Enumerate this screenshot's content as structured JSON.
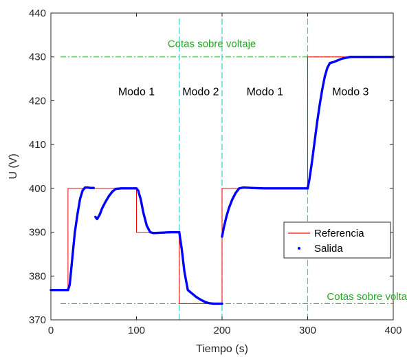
{
  "chart_data": {
    "type": "line",
    "xlabel": "Tiempo (s)",
    "ylabel": "U (V)",
    "xlim": [
      0,
      400
    ],
    "ylim": [
      370,
      440
    ],
    "xticks": [
      0,
      100,
      200,
      300,
      400
    ],
    "yticks": [
      370,
      380,
      390,
      400,
      410,
      420,
      430,
      440
    ],
    "grid": false,
    "legend_position": "lower-right",
    "legend": [
      "Referencia",
      "Salida"
    ],
    "colors": {
      "reference": "#ff0000",
      "output": "#0000ff",
      "bounds": "#22aa22",
      "mode_lines": "#33cccc"
    },
    "series": [
      {
        "name": "Referencia",
        "style": "line",
        "x": [
          0,
          20,
          20,
          100,
          100,
          150,
          150,
          200,
          200,
          300,
          300,
          400
        ],
        "y": [
          376.8,
          376.8,
          400,
          400,
          390,
          390,
          373.7,
          373.7,
          400,
          400,
          430,
          430
        ]
      },
      {
        "name": "Salida",
        "style": "points",
        "segments": [
          {
            "x": [
              0,
              20,
              22,
              25,
              28,
              31,
              34,
              37,
              40,
              43,
              46,
              50
            ],
            "y": [
              376.8,
              376.8,
              378,
              384,
              390,
              394,
              397.5,
              399.5,
              400.2,
              400.2,
              400.1,
              400.1
            ]
          },
          {
            "x": [
              52,
              54,
              57,
              60,
              64,
              68,
              72,
              76,
              82,
              90,
              100,
              102,
              105,
              108,
              112,
              116,
              120,
              130,
              140,
              150
            ],
            "y": [
              393.5,
              393,
              394,
              395.5,
              397,
              398.3,
              399.3,
              399.9,
              400,
              400,
              400,
              399.5,
              397.5,
              394.5,
              391.5,
              390,
              389.8,
              389.9,
              390,
              390
            ]
          },
          {
            "x": [
              150,
              153,
              156,
              160,
              165,
              170,
              175,
              180,
              185,
              190,
              195,
              200
            ],
            "y": [
              390,
              386,
              381,
              376.8,
              376,
              375.2,
              374.6,
              374.1,
              373.8,
              373.7,
              373.7,
              373.7
            ]
          },
          {
            "x": [
              200,
              202,
              205,
              208,
              212,
              216,
              220,
              225,
              235,
              250,
              270,
              290,
              300
            ],
            "y": [
              389,
              391,
              393.5,
              395.5,
              397.5,
              399,
              400,
              400.2,
              400.1,
              400,
              400,
              400,
              400
            ]
          },
          {
            "x": [
              300,
              302,
              305,
              308,
              311,
              314,
              317,
              320,
              323,
              326,
              330,
              335,
              340,
              350,
              360,
              380,
              400
            ],
            "y": [
              400,
              402,
              406,
              410.5,
              415,
              419,
              422.5,
              425.5,
              427.5,
              428.6,
              428.8,
              429.2,
              429.6,
              430,
              430,
              430,
              430
            ]
          }
        ]
      }
    ],
    "reference_lines": {
      "upper_bound": {
        "y": 430,
        "label": "Cotas sobre voltaje"
      },
      "lower_bound": {
        "y": 373.7,
        "label": "Cotas sobre voltaje"
      },
      "mode_boundaries_x": [
        150,
        200,
        300
      ]
    },
    "annotations": [
      {
        "text": "Modo 1",
        "x": 100,
        "y": 422
      },
      {
        "text": "Modo 2",
        "x": 175,
        "y": 422
      },
      {
        "text": "Modo 1",
        "x": 250,
        "y": 422
      },
      {
        "text": "Modo 3",
        "x": 350,
        "y": 422
      }
    ],
    "bound_label_positions": [
      {
        "x": 188,
        "y": 433
      },
      {
        "x": 374,
        "y": 375.3
      }
    ]
  }
}
